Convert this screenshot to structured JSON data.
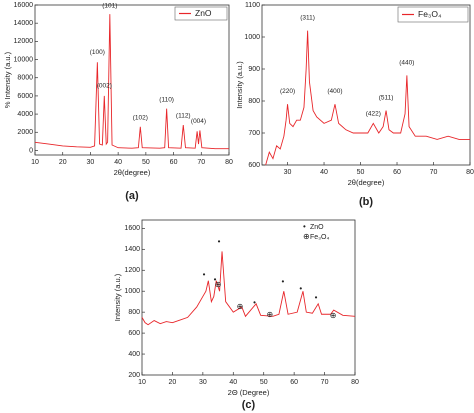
{
  "chart_data": [
    {
      "type": "line",
      "label": "(a)",
      "xlabel": "2θ(degree)",
      "ylabel": "% Intensity (a.u.)",
      "legend": "upper right",
      "xlim": [
        10,
        80
      ],
      "ylim": [
        -500,
        16000
      ],
      "xticks": [
        10,
        20,
        30,
        40,
        50,
        60,
        70,
        80
      ],
      "yticks": [
        0,
        2000,
        4000,
        6000,
        8000,
        10000,
        12000,
        14000,
        16000
      ],
      "series": [
        {
          "name": "ZnO",
          "color": "#e8262a",
          "x": [
            10,
            15,
            20,
            25,
            30,
            31.5,
            32.5,
            33.3,
            34.3,
            35,
            35.7,
            36.2,
            37,
            37.8,
            40,
            45,
            47.3,
            48,
            48.7,
            55,
            56.8,
            57.5,
            58.2,
            62.7,
            63.5,
            64.3,
            67.8,
            68.5,
            69,
            69.5,
            70.2,
            75,
            80
          ],
          "values": [
            900,
            700,
            500,
            400,
            350,
            500,
            9700,
            700,
            600,
            6000,
            700,
            900,
            15000,
            600,
            300,
            250,
            300,
            2600,
            300,
            250,
            300,
            4600,
            300,
            250,
            2800,
            300,
            250,
            2100,
            700,
            2200,
            300,
            200,
            200
          ]
        }
      ],
      "annotations": [
        {
          "text": "(100)",
          "x": 32.5,
          "y": 10800
        },
        {
          "text": "(002)",
          "x": 35,
          "y": 7100
        },
        {
          "text": "(101)",
          "x": 37,
          "y": 15900
        },
        {
          "text": "(102)",
          "x": 48,
          "y": 3600
        },
        {
          "text": "(110)",
          "x": 57.5,
          "y": 5600
        },
        {
          "text": "(112)",
          "x": 63.5,
          "y": 3800
        },
        {
          "text": "(004)",
          "x": 69,
          "y": 3200
        }
      ]
    },
    {
      "type": "line",
      "label": "(b)",
      "xlabel": "2θ(degree)",
      "ylabel": "Intensity (a.u.)",
      "legend": "upper right",
      "xlim": [
        23,
        80
      ],
      "ylim": [
        600,
        1100
      ],
      "xticks": [
        30,
        40,
        50,
        60,
        70,
        80
      ],
      "yticks": [
        600,
        700,
        800,
        900,
        1000,
        1100
      ],
      "series": [
        {
          "name": "Fe₃O₄",
          "color": "#e8262a",
          "x": [
            24,
            25,
            26,
            27,
            28,
            29,
            29.6,
            30,
            30.6,
            31.5,
            32.5,
            33.5,
            34.5,
            35.1,
            35.5,
            36,
            37,
            38,
            40,
            42,
            43,
            44,
            46,
            48,
            50,
            52,
            53.5,
            55,
            56.2,
            57,
            57.8,
            59,
            61,
            62.2,
            62.7,
            63.3,
            65,
            68,
            71,
            74,
            77,
            80
          ],
          "values": [
            600,
            640,
            620,
            660,
            650,
            690,
            740,
            790,
            730,
            720,
            740,
            740,
            780,
            900,
            1020,
            860,
            770,
            750,
            730,
            740,
            790,
            730,
            710,
            700,
            700,
            700,
            730,
            700,
            720,
            770,
            710,
            700,
            700,
            760,
            880,
            720,
            690,
            690,
            680,
            690,
            680,
            680
          ]
        }
      ],
      "annotations": [
        {
          "text": "(220)",
          "x": 30,
          "y": 830
        },
        {
          "text": "(311)",
          "x": 35.5,
          "y": 1060
        },
        {
          "text": "(400)",
          "x": 43,
          "y": 830
        },
        {
          "text": "(422)",
          "x": 53.5,
          "y": 760
        },
        {
          "text": "(511)",
          "x": 57,
          "y": 810
        },
        {
          "text": "(440)",
          "x": 62.7,
          "y": 920
        }
      ]
    },
    {
      "type": "line",
      "label": "(c)",
      "xlabel": "2Θ (Degree)",
      "ylabel": "Intensity (a.u.)",
      "legend": "upper right",
      "xlim": [
        10,
        80
      ],
      "ylim": [
        200,
        1680
      ],
      "xticks": [
        10,
        20,
        30,
        40,
        50,
        60,
        70,
        80
      ],
      "yticks": [
        200,
        400,
        600,
        800,
        1000,
        1200,
        1400,
        1600
      ],
      "series": [
        {
          "color": "#e8262a",
          "x": [
            10,
            11,
            12,
            14,
            16,
            18,
            20,
            22,
            25,
            28,
            30,
            31,
            31.8,
            32.8,
            33.6,
            34.4,
            35.5,
            36.3,
            37.5,
            40,
            42.8,
            44,
            47.5,
            49,
            53,
            55,
            56.6,
            58,
            61,
            62.9,
            64,
            66,
            67.9,
            69,
            72,
            73,
            76,
            80
          ],
          "values": [
            750,
            700,
            680,
            720,
            690,
            710,
            700,
            720,
            750,
            850,
            950,
            1000,
            1100,
            900,
            950,
            1100,
            1000,
            1380,
            900,
            800,
            850,
            760,
            880,
            770,
            760,
            780,
            1000,
            780,
            800,
            1000,
            800,
            790,
            880,
            780,
            780,
            820,
            770,
            760
          ]
        },
        {
          "name": "ZnO",
          "marker": "•",
          "color": "#111111",
          "x": [
            30.4,
            34,
            35.3,
            47,
            56.3,
            62.2,
            67.2
          ],
          "values": [
            1157,
            1110,
            1470,
            890,
            1090,
            1020,
            935
          ]
        },
        {
          "name": "Fe₃O₄",
          "marker": "⊕",
          "color": "#111111",
          "x": [
            35,
            42.2,
            52,
            72.8
          ],
          "values": [
            1060,
            850,
            775,
            765
          ]
        }
      ]
    }
  ]
}
